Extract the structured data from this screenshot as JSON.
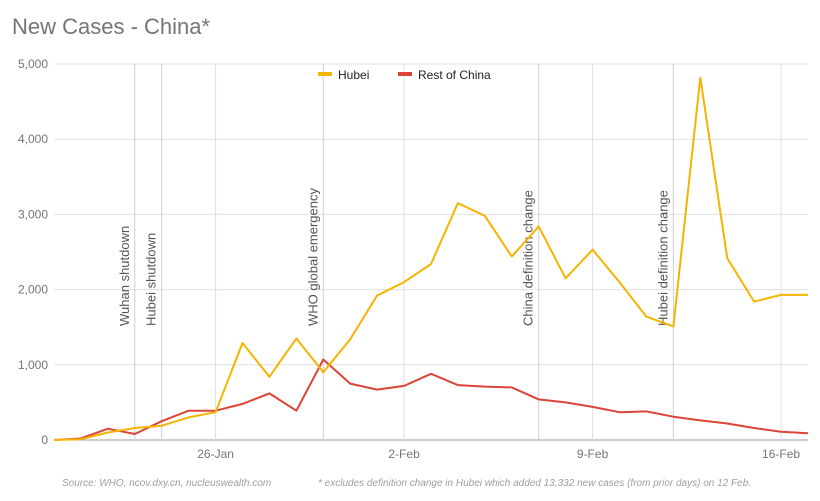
{
  "title": "New Cases - China*",
  "source_note": "Source: WHO, ncov.dxy.cn, nucleuswealth.com",
  "footnote": "* excludes definition change in Hubei which added 13,332 new cases (from prior days) on 12 Feb.",
  "colors": {
    "hubei": "#f4b400",
    "rest_of_china": "#db4437",
    "event_line": "#cfcfcf",
    "gridline": "#e0e0e0",
    "axis_text": "#757575"
  },
  "chart_data": {
    "type": "line",
    "x": [
      "2020-01-20",
      "2020-01-21",
      "2020-01-22",
      "2020-01-23",
      "2020-01-24",
      "2020-01-25",
      "2020-01-26",
      "2020-01-27",
      "2020-01-28",
      "2020-01-29",
      "2020-01-30",
      "2020-01-31",
      "2020-02-01",
      "2020-02-02",
      "2020-02-03",
      "2020-02-04",
      "2020-02-05",
      "2020-02-06",
      "2020-02-07",
      "2020-02-08",
      "2020-02-09",
      "2020-02-10",
      "2020-02-11",
      "2020-02-12",
      "2020-02-13",
      "2020-02-14",
      "2020-02-15",
      "2020-02-16",
      "2020-02-17"
    ],
    "xtick_labels": [
      {
        "date": "2020-01-26",
        "label": "26-Jan"
      },
      {
        "date": "2020-02-02",
        "label": "2-Feb"
      },
      {
        "date": "2020-02-09",
        "label": "9-Feb"
      },
      {
        "date": "2020-02-16",
        "label": "16-Feb"
      }
    ],
    "series": [
      {
        "name": "Hubei",
        "color": "#f4b400",
        "values": [
          0,
          10,
          100,
          160,
          190,
          300,
          370,
          1290,
          840,
          1350,
          900,
          1340,
          1920,
          2100,
          2340,
          3150,
          2980,
          2440,
          2840,
          2150,
          2530,
          2100,
          1640,
          1510,
          4820,
          2420,
          1840,
          1930,
          1930
        ]
      },
      {
        "name": "Rest of China",
        "color": "#db4437",
        "values": [
          0,
          20,
          150,
          80,
          250,
          390,
          390,
          480,
          620,
          390,
          1070,
          750,
          670,
          720,
          880,
          730,
          710,
          700,
          540,
          500,
          440,
          370,
          380,
          310,
          260,
          220,
          160,
          110,
          90
        ]
      }
    ],
    "events": [
      {
        "date": "2020-01-23",
        "label": "Wuhan shutdown"
      },
      {
        "date": "2020-01-24",
        "label": "Hubei shutdown"
      },
      {
        "date": "2020-01-30",
        "label": "WHO global emergency"
      },
      {
        "date": "2020-02-07",
        "label": "China definition change"
      },
      {
        "date": "2020-02-12",
        "label": "Hubei definition change"
      }
    ],
    "yticks": [
      0,
      1000,
      2000,
      3000,
      4000,
      5000
    ],
    "ytick_labels": [
      "0",
      "1,000",
      "2,000",
      "3,000",
      "4,000",
      "5,000"
    ],
    "ylim": [
      0,
      5000
    ],
    "xlim": [
      "2020-01-20",
      "2020-02-17"
    ],
    "legend_position": "top-center",
    "grid": "horizontal"
  }
}
